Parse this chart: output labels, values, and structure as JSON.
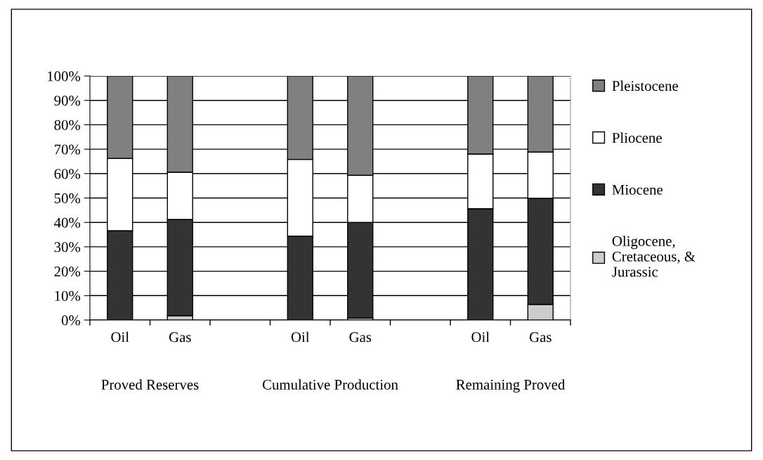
{
  "chart_data": {
    "type": "bar",
    "stacked": true,
    "categories": [
      "Oil",
      "Gas",
      null,
      "Oil",
      "Gas",
      null,
      "Oil",
      "Gas"
    ],
    "series": [
      {
        "name": "Oligocene,\nCretaceous, &\nJurassic",
        "color": "#cccccc",
        "values": [
          0,
          1.8,
          null,
          0,
          0.8,
          null,
          null,
          6.4
        ]
      },
      {
        "name": "Miocene",
        "color": "#333333",
        "values": [
          36.6,
          39.4,
          null,
          34.4,
          39.2,
          null,
          45.6,
          43.5
        ]
      },
      {
        "name": "Pliocene",
        "color": "#ffffff",
        "values": [
          29.6,
          19.4,
          null,
          31.4,
          19.3,
          null,
          22.4,
          18.9
        ]
      },
      {
        "name": "Pleistocene",
        "color": "#808080",
        "values": [
          33.8,
          39.4,
          null,
          34.2,
          40.7,
          null,
          32.0,
          31.2
        ]
      }
    ],
    "ylim": [
      0,
      100
    ],
    "yticks": [
      {
        "value": 0,
        "label": "0%"
      },
      {
        "value": 10,
        "label": "10%"
      },
      {
        "value": 20,
        "label": "20%"
      },
      {
        "value": 30,
        "label": "30%"
      },
      {
        "value": 40,
        "label": "40%"
      },
      {
        "value": 50,
        "label": "50%"
      },
      {
        "value": 60,
        "label": "60%"
      },
      {
        "value": 70,
        "label": "70%"
      },
      {
        "value": 80,
        "label": "80%"
      },
      {
        "value": 90,
        "label": "90%"
      },
      {
        "value": 100,
        "label": "100%"
      }
    ],
    "grid": "y",
    "legend": "right",
    "annotations": [
      "Proved Reserves",
      "Cumulative Production",
      "Remaining Proved"
    ]
  }
}
